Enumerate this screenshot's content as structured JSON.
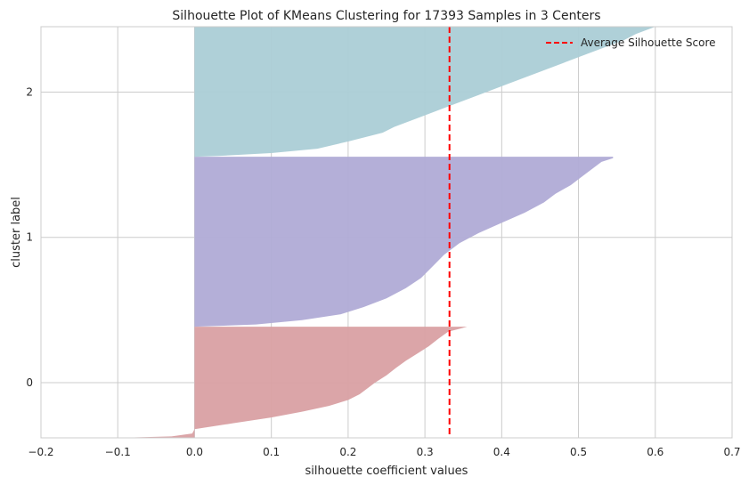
{
  "chart_data": {
    "type": "area",
    "title": "Silhouette Plot of KMeans Clustering for 17393 Samples in 3 Centers",
    "xlabel": "silhouette coefficient values",
    "ylabel": "cluster label",
    "xlim": [
      -0.2,
      0.7
    ],
    "x_ticks": [
      "−0.2",
      "−0.1",
      "0.0",
      "0.1",
      "0.2",
      "0.3",
      "0.4",
      "0.5",
      "0.6",
      "0.7"
    ],
    "x_tick_values": [
      -0.2,
      -0.1,
      0.0,
      0.1,
      0.2,
      0.3,
      0.4,
      0.5,
      0.6,
      0.7
    ],
    "y_ticks": [
      "0",
      "1",
      "2"
    ],
    "y_tick_values": [
      0,
      1,
      2
    ],
    "ylim": [
      -0.38,
      2.45
    ],
    "grid": true,
    "legend_position": "top-right",
    "average_silhouette_score": 0.332,
    "average_line": {
      "label": "Average Silhouette Score",
      "color": "#ff0000",
      "style": "dashed"
    },
    "clusters": [
      {
        "label": "0",
        "color": "#d9a0a3",
        "y_range": [
          -0.38,
          0.385
        ],
        "profile": [
          [
            -0.38,
            -0.1
          ],
          [
            -0.37,
            -0.03
          ],
          [
            -0.35,
            -0.003
          ],
          [
            -0.32,
            0.0
          ],
          [
            -0.28,
            0.05
          ],
          [
            -0.24,
            0.1
          ],
          [
            -0.2,
            0.14
          ],
          [
            -0.16,
            0.175
          ],
          [
            -0.12,
            0.2
          ],
          [
            -0.08,
            0.215
          ],
          [
            -0.04,
            0.225
          ],
          [
            0.0,
            0.235
          ],
          [
            0.05,
            0.25
          ],
          [
            0.1,
            0.262
          ],
          [
            0.15,
            0.275
          ],
          [
            0.2,
            0.29
          ],
          [
            0.25,
            0.305
          ],
          [
            0.3,
            0.317
          ],
          [
            0.35,
            0.33
          ],
          [
            0.37,
            0.345
          ],
          [
            0.385,
            0.355
          ]
        ]
      },
      {
        "label": "1",
        "color": "#b0abd6",
        "y_range": [
          0.385,
          1.555
        ],
        "profile": [
          [
            0.385,
            0.0
          ],
          [
            0.4,
            0.08
          ],
          [
            0.43,
            0.14
          ],
          [
            0.47,
            0.19
          ],
          [
            0.52,
            0.22
          ],
          [
            0.58,
            0.25
          ],
          [
            0.65,
            0.275
          ],
          [
            0.72,
            0.295
          ],
          [
            0.8,
            0.31
          ],
          [
            0.88,
            0.325
          ],
          [
            0.96,
            0.345
          ],
          [
            1.03,
            0.37
          ],
          [
            1.1,
            0.4
          ],
          [
            1.17,
            0.43
          ],
          [
            1.24,
            0.455
          ],
          [
            1.3,
            0.47
          ],
          [
            1.36,
            0.49
          ],
          [
            1.42,
            0.505
          ],
          [
            1.48,
            0.52
          ],
          [
            1.52,
            0.53
          ],
          [
            1.545,
            0.545
          ],
          [
            1.555,
            0.545
          ]
        ]
      },
      {
        "label": "2",
        "color": "#abcdd6",
        "y_range": [
          1.555,
          2.45
        ],
        "profile": [
          [
            1.555,
            0.0
          ],
          [
            1.56,
            0.03
          ],
          [
            1.58,
            0.1
          ],
          [
            1.61,
            0.16
          ],
          [
            1.66,
            0.2
          ],
          [
            1.72,
            0.245
          ],
          [
            1.76,
            0.26
          ],
          [
            1.82,
            0.29
          ],
          [
            1.9,
            0.33
          ],
          [
            1.98,
            0.37
          ],
          [
            2.06,
            0.41
          ],
          [
            2.14,
            0.45
          ],
          [
            2.2,
            0.48
          ],
          [
            2.26,
            0.51
          ],
          [
            2.32,
            0.54
          ],
          [
            2.36,
            0.56
          ],
          [
            2.4,
            0.575
          ],
          [
            2.43,
            0.59
          ],
          [
            2.45,
            0.6
          ]
        ]
      }
    ]
  }
}
